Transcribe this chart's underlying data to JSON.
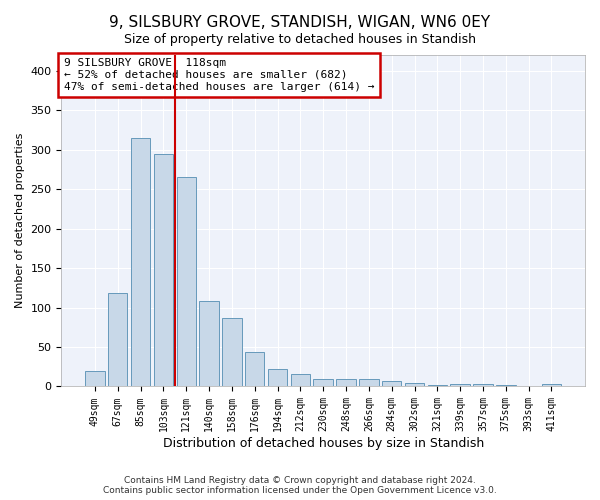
{
  "title": "9, SILSBURY GROVE, STANDISH, WIGAN, WN6 0EY",
  "subtitle": "Size of property relative to detached houses in Standish",
  "xlabel": "Distribution of detached houses by size in Standish",
  "ylabel": "Number of detached properties",
  "bar_color": "#c8d8e8",
  "bar_edge_color": "#6699bb",
  "background_color": "#eef2fa",
  "grid_color": "#ffffff",
  "annotation_box_color": "#cc0000",
  "vline_color": "#cc0000",
  "annotation_lines": [
    "9 SILSBURY GROVE: 118sqm",
    "← 52% of detached houses are smaller (682)",
    "47% of semi-detached houses are larger (614) →"
  ],
  "categories": [
    "49sqm",
    "67sqm",
    "85sqm",
    "103sqm",
    "121sqm",
    "140sqm",
    "158sqm",
    "176sqm",
    "194sqm",
    "212sqm",
    "230sqm",
    "248sqm",
    "266sqm",
    "284sqm",
    "302sqm",
    "321sqm",
    "339sqm",
    "357sqm",
    "375sqm",
    "393sqm",
    "411sqm"
  ],
  "values": [
    20,
    118,
    315,
    295,
    265,
    108,
    87,
    44,
    22,
    16,
    10,
    9,
    9,
    7,
    4,
    2,
    3,
    3,
    2,
    1,
    3
  ],
  "ylim": [
    0,
    420
  ],
  "yticks": [
    0,
    50,
    100,
    150,
    200,
    250,
    300,
    350,
    400
  ],
  "footer_lines": [
    "Contains HM Land Registry data © Crown copyright and database right 2024.",
    "Contains public sector information licensed under the Open Government Licence v3.0."
  ],
  "vline_bar_index": 3.5
}
